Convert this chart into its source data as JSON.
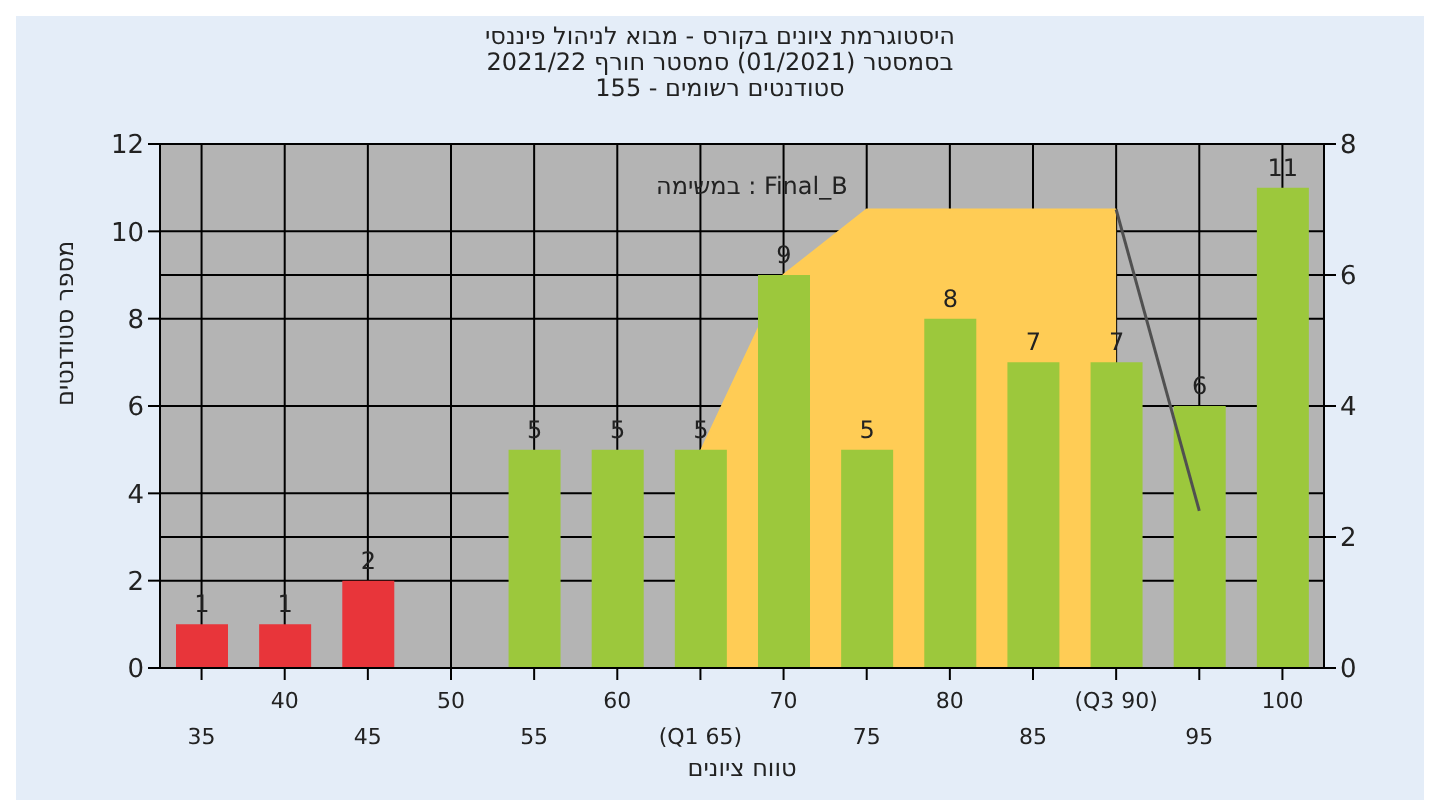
{
  "chart_data": {
    "type": "bar",
    "title": "היסטוגרמת ציונים בקורס - מבוא לניהול פיננסי",
    "subtitle": "בסמסטר  (01/2021)  סמסטר חורף 2021/22\nסטודנטים רשומים - 155",
    "xlabel": "טווח ציונים",
    "ylabel": "מספר סטודנטים",
    "annotations": [
      "במשימה : Final_B"
    ],
    "categories": [
      "35",
      "40",
      "45",
      "50",
      "55",
      "60",
      "(Q1 65)",
      "70",
      "75",
      "80",
      "85",
      "(Q3 90)",
      "95",
      "100"
    ],
    "series": [
      {
        "type": "area",
        "axis": "y2",
        "color": "#ffcc55",
        "values": [
          null,
          null,
          null,
          null,
          null,
          null,
          3.3,
          6,
          7,
          7,
          7,
          7,
          null,
          null
        ]
      },
      {
        "type": "line",
        "axis": "y2",
        "color": "#505050",
        "values": [
          null,
          null,
          null,
          null,
          null,
          null,
          null,
          null,
          null,
          null,
          null,
          7,
          2.4,
          null
        ]
      },
      {
        "colors": [
          "#e8353a",
          "#e8353a",
          "#e8353a",
          "#9cc83c",
          "#9cc83c",
          "#9cc83c",
          "#9cc83c",
          "#9cc83c",
          "#9cc83c",
          "#9cc83c",
          "#9cc83c",
          "#9cc83c",
          "#9cc83c",
          "#9cc83c"
        ],
        "values": [
          1,
          1,
          2,
          0,
          5,
          5,
          5,
          9,
          5,
          8,
          7,
          7,
          6,
          11
        ],
        "value_labels": [
          "1",
          "1",
          "2",
          null,
          "5",
          "5",
          "5",
          "9",
          "5",
          "8",
          "7",
          "7",
          "6",
          "11"
        ]
      }
    ],
    "ylim": [
      0,
      12
    ],
    "yticks": [
      0,
      2,
      4,
      6,
      8,
      10,
      12
    ],
    "y2lim": [
      0,
      8
    ],
    "y2ticks": [
      0,
      2,
      4,
      6,
      8
    ],
    "grid": true,
    "legend": false
  }
}
